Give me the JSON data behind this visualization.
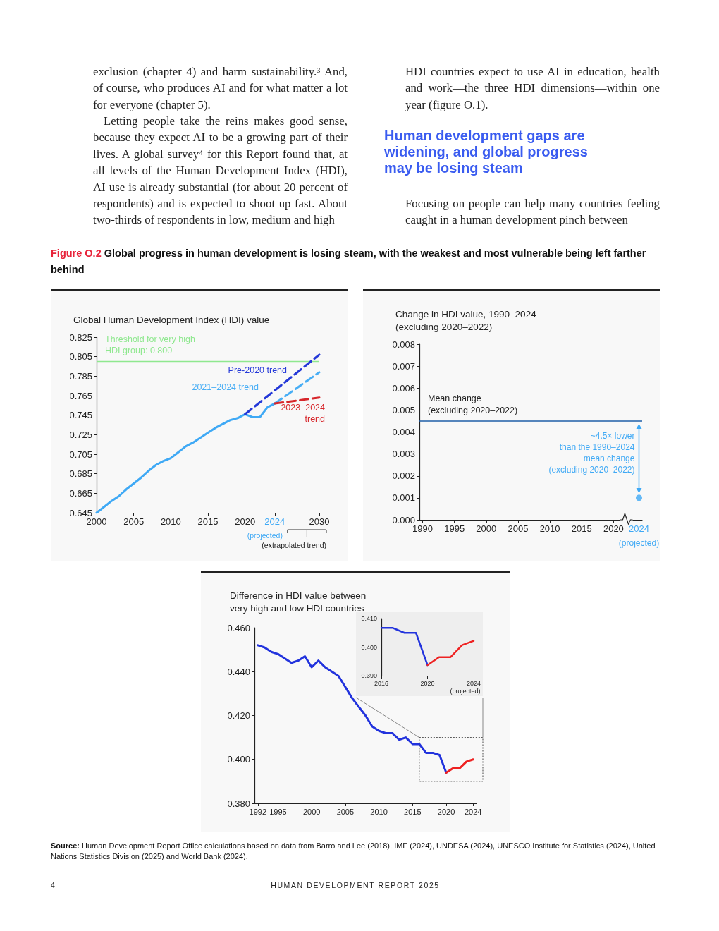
{
  "chart_data": [
    {
      "type": "other",
      "title": "Human development gaps are widening, and global progress may be losing steam",
      "annotations": [
        "exclusion (chapter 4) and harm sustainability.³ And, of course, who produces AI and for what matter a lot for everyone (chapter 5).",
        "Letting people take the reins makes good sense, because they expect AI to be a growing part of their lives. A global survey⁴ for this Report found that, at all levels of the Human Development Index (HDI), AI use is already substantial (for about 20 percent of respondents) and is expected to shoot up fast. About two-thirds of respondents in low, medium and high",
        "HDI countries expect to use AI in education, health and work—the three HDI dimensions—within one year (figure O.1).",
        "Focusing on people can help many countries feeling caught in a human development pinch between",
        "Figure O.2",
        "Global progress in human development is losing steam, with the weakest and most vulnerable being left farther behind",
        "Source:",
        "Human Development Report Office calculations based on data from Barro and Lee (2018), IMF (2024), UNDESA (2024), UNESCO Institute for Statistics (2024), United Nations Statistics Division (2025) and World Bank (2024).",
        "4",
        "HUMAN DEVELOPMENT REPORT 2025"
      ]
    },
    {
      "type": "line",
      "title": "Global Human Development Index (HDI) value",
      "xlim": [
        2000,
        2030
      ],
      "xticks": [
        2000,
        2005,
        2010,
        2015,
        2020,
        2024,
        2030
      ],
      "ylim": [
        0.645,
        0.825
      ],
      "yticks": [
        0.645,
        0.665,
        0.685,
        0.705,
        0.725,
        0.745,
        0.765,
        0.785,
        0.805,
        0.825
      ],
      "ref_lines": [
        {
          "axis": "y",
          "value": 0.8,
          "label": "Threshold for very high\nHDI group: 0.800",
          "color": "#8fe88f"
        }
      ],
      "annotations": [
        "(projected)",
        "(extrapolated trend)"
      ],
      "series": [
        {
          "color": "#3fa9f5",
          "x": [
            2000,
            2001,
            2002,
            2003,
            2004,
            2005,
            2006,
            2007,
            2008,
            2009,
            2010,
            2011,
            2012,
            2013,
            2014,
            2015,
            2016,
            2017,
            2018,
            2019,
            2020,
            2021,
            2022,
            2023,
            2024
          ],
          "values": [
            0.645,
            0.651,
            0.657,
            0.662,
            0.669,
            0.675,
            0.681,
            0.688,
            0.694,
            0.698,
            0.701,
            0.707,
            0.713,
            0.717,
            0.722,
            0.727,
            0.732,
            0.736,
            0.74,
            0.742,
            0.746,
            0.743,
            0.743,
            0.753,
            0.757
          ]
        },
        {
          "name": "Pre-2020 trend",
          "color": "#2438d8",
          "line_style": "dashed",
          "x": [
            2020,
            2030
          ],
          "values": [
            0.746,
            0.807
          ]
        },
        {
          "name": "2021–2024 trend",
          "color": "#49aef5",
          "line_style": "dashed",
          "x": [
            2024,
            2030
          ],
          "values": [
            0.757,
            0.789
          ]
        },
        {
          "name": "2023–2024\ntrend",
          "color": "#d7262b",
          "line_style": "dashed",
          "x": [
            2024,
            2030
          ],
          "values": [
            0.757,
            0.763
          ]
        }
      ]
    },
    {
      "type": "scatter",
      "title": "Change in HDI value, 1990–2024\n(excluding 2020–2022)",
      "xlim": [
        1989.5,
        2024.5
      ],
      "xticks": [
        1990,
        1995,
        2000,
        2005,
        2010,
        2015,
        2020,
        2024
      ],
      "ylim": [
        0,
        0.008
      ],
      "yticks": [
        {
          "value": 0,
          "label": "0.000"
        },
        0.001,
        0.002,
        0.003,
        0.004,
        0.005,
        0.006,
        0.007,
        0.008
      ],
      "marker": "circle",
      "ref_lines": [
        {
          "axis": "y",
          "value": 0.0045,
          "label": "Mean change\n(excluding 2020–2022)",
          "color": "#1f5fa8"
        }
      ],
      "annotations": [
        "~4.5× lower\nthan the 1990–2024\nmean change\n(excluding 2020–2022)",
        "(projected)"
      ],
      "series": [
        {
          "color": "#3fa9f5",
          "x": [
            2024
          ],
          "values": [
            0.001
          ]
        }
      ]
    },
    {
      "type": "line",
      "title": "Difference in HDI value between\nvery high and low HDI countries",
      "xlim": [
        1991.5,
        2024.5
      ],
      "xticks": [
        1992,
        1995,
        2000,
        2005,
        2010,
        2015,
        2020,
        2024
      ],
      "ylim": [
        0.38,
        0.46
      ],
      "yticks": [
        {
          "value": 0.38,
          "label": "0.380"
        },
        {
          "value": 0.4,
          "label": "0.400"
        },
        {
          "value": 0.42,
          "label": "0.420"
        },
        {
          "value": 0.44,
          "label": "0.440"
        },
        {
          "value": 0.46,
          "label": "0.460"
        }
      ],
      "series": [
        {
          "color": "#2233dd",
          "x": [
            1992,
            1993,
            1994,
            1995,
            1996,
            1997,
            1998,
            1999,
            2000,
            2001,
            2002,
            2003,
            2004,
            2005,
            2006,
            2007,
            2008,
            2009,
            2010,
            2011,
            2012,
            2013,
            2014,
            2015,
            2016,
            2017,
            2018,
            2019,
            2020
          ],
          "values": [
            0.452,
            0.451,
            0.449,
            0.448,
            0.446,
            0.444,
            0.445,
            0.447,
            0.442,
            0.445,
            0.442,
            0.44,
            0.438,
            0.433,
            0.428,
            0.424,
            0.42,
            0.415,
            0.413,
            0.412,
            0.412,
            0.409,
            0.41,
            0.407,
            0.407,
            0.403,
            0.403,
            0.402,
            0.394
          ]
        },
        {
          "color": "#ee2222",
          "x": [
            2020,
            2021,
            2022,
            2023,
            2024
          ],
          "values": [
            0.394,
            0.396,
            0.396,
            0.399,
            0.4
          ]
        }
      ]
    },
    {
      "type": "line",
      "xlim": [
        2016,
        2024
      ],
      "xticks": [
        2016,
        2020,
        2024
      ],
      "ylim": [
        0.39,
        0.41
      ],
      "yticks": [
        {
          "value": 0.39,
          "label": "0.390"
        },
        {
          "value": 0.4,
          "label": "0.400"
        },
        {
          "value": 0.41,
          "label": "0.410"
        }
      ],
      "annotations": [
        "(projected)"
      ],
      "series": [
        {
          "color": "#2233dd",
          "x": [
            2016,
            2017,
            2018,
            2019,
            2020
          ],
          "values": [
            0.4067,
            0.4067,
            0.405,
            0.405,
            0.3937
          ]
        },
        {
          "color": "#ee2222",
          "x": [
            2020,
            2021,
            2022,
            2023,
            2024
          ],
          "values": [
            0.3937,
            0.3965,
            0.3965,
            0.4007,
            0.4022
          ]
        }
      ]
    }
  ]
}
